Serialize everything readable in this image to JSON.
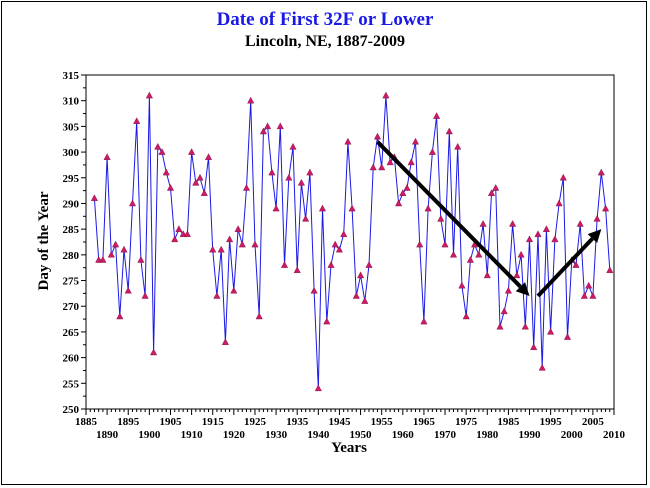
{
  "chart_data": {
    "type": "line",
    "title": "Date of First 32F or Lower",
    "subtitle": "Lincoln, NE, 1887-2009",
    "xlabel": "Years",
    "ylabel": "Day of the Year",
    "xlim": [
      1885,
      2010
    ],
    "ylim": [
      250,
      315
    ],
    "x_ticks_lower": [
      "1885",
      "1895",
      "1905",
      "1915",
      "1925",
      "1935",
      "1945",
      "1955",
      "1965",
      "1975",
      "1985",
      "1995",
      "2005"
    ],
    "x_ticks_upper": [
      "1890",
      "1900",
      "1910",
      "1920",
      "1930",
      "1940",
      "1950",
      "1960",
      "1970",
      "1980",
      "1990",
      "2000",
      "2010"
    ],
    "y_ticks": [
      "250",
      "255",
      "260",
      "265",
      "270",
      "275",
      "280",
      "285",
      "290",
      "295",
      "300",
      "305",
      "310",
      "315"
    ],
    "grid": false,
    "legend": "none",
    "colors": {
      "line": "#1a1ae6",
      "marker": "#cc1a66",
      "arrow": "#000000",
      "title": "#1a1ae6"
    },
    "series": [
      {
        "x": [
          1887,
          1888,
          1889,
          1890,
          1891,
          1892,
          1893,
          1894,
          1895,
          1896,
          1897,
          1898,
          1899,
          1900,
          1901,
          1902,
          1903,
          1904,
          1905,
          1906,
          1907,
          1908,
          1909,
          1910,
          1911,
          1912,
          1913,
          1914,
          1915,
          1916,
          1917,
          1918,
          1919,
          1920,
          1921,
          1922,
          1923,
          1924,
          1925,
          1926,
          1927,
          1928,
          1929,
          1930,
          1931,
          1932,
          1933,
          1934,
          1935,
          1936,
          1937,
          1938,
          1939,
          1940,
          1941,
          1942,
          1943,
          1944,
          1945,
          1946,
          1947,
          1948,
          1949,
          1950,
          1951,
          1952,
          1953,
          1954,
          1955,
          1956,
          1957,
          1958,
          1959,
          1960,
          1961,
          1962,
          1963,
          1964,
          1965,
          1966,
          1967,
          1968,
          1969,
          1970,
          1971,
          1972,
          1973,
          1974,
          1975,
          1976,
          1977,
          1978,
          1979,
          1980,
          1981,
          1982,
          1983,
          1984,
          1985,
          1986,
          1987,
          1988,
          1989,
          1990,
          1991,
          1992,
          1993,
          1994,
          1995,
          1996,
          1997,
          1998,
          1999,
          2000,
          2001,
          2002,
          2003,
          2004,
          2005,
          2006,
          2007,
          2008,
          2009
        ],
        "values": [
          291,
          279,
          279,
          299,
          280,
          282,
          268,
          281,
          273,
          290,
          306,
          279,
          272,
          311,
          261,
          301,
          300,
          296,
          293,
          283,
          285,
          284,
          284,
          300,
          294,
          295,
          292,
          299,
          281,
          272,
          281,
          263,
          283,
          273,
          285,
          282,
          293,
          310,
          282,
          268,
          304,
          305,
          296,
          289,
          305,
          278,
          295,
          301,
          277,
          294,
          287,
          296,
          273,
          254,
          289,
          267,
          278,
          282,
          281,
          284,
          302,
          289,
          272,
          276,
          271,
          278,
          297,
          303,
          297,
          311,
          298,
          299,
          290,
          292,
          293,
          298,
          302,
          282,
          267,
          289,
          300,
          307,
          287,
          282,
          304,
          280,
          301,
          274,
          268,
          279,
          282,
          280,
          286,
          276,
          292,
          293,
          266,
          269,
          273,
          286,
          276,
          280,
          266,
          283,
          262,
          284,
          258,
          285,
          265,
          283,
          290,
          295,
          264,
          279,
          278,
          286,
          272,
          274,
          272,
          287,
          296,
          289,
          277
        ]
      }
    ],
    "annotations": [
      {
        "type": "arrow",
        "from": [
          1954,
          302
        ],
        "to": [
          1990,
          272
        ]
      },
      {
        "type": "arrow",
        "from": [
          1992,
          272
        ],
        "to": [
          2007,
          285
        ]
      }
    ]
  }
}
